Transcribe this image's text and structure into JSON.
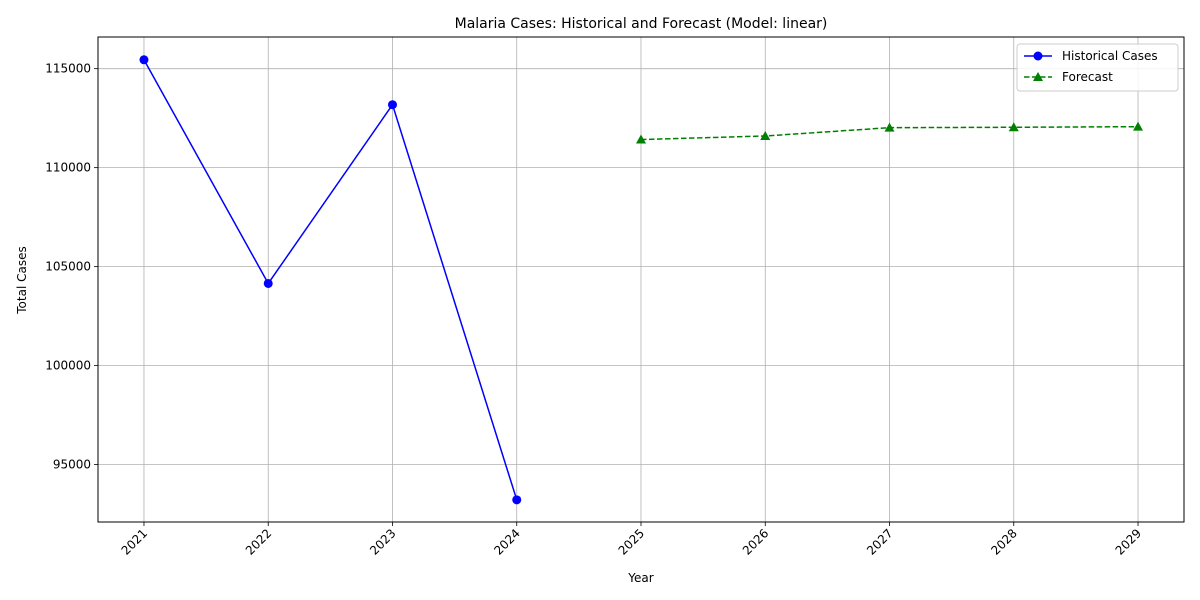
{
  "chart_data": {
    "type": "line",
    "title": "Malaria Cases: Historical and Forecast (Model: linear)",
    "xlabel": "Year",
    "ylabel": "Total Cases",
    "xlim": [
      2020.63,
      2029.37
    ],
    "ylim": [
      92100,
      116600
    ],
    "x_ticks": [
      2021,
      2022,
      2023,
      2024,
      2025,
      2026,
      2027,
      2028,
      2029
    ],
    "y_ticks": [
      95000,
      100000,
      105000,
      110000,
      115000
    ],
    "grid": true,
    "legend_position": "top-right",
    "series": [
      {
        "name": "Historical Cases",
        "color": "#0000ff",
        "line_style": "solid",
        "marker": "circle",
        "x": [
          2021,
          2022,
          2023,
          2024
        ],
        "values": [
          115450,
          104150,
          113180,
          93220
        ]
      },
      {
        "name": "Forecast",
        "color": "#008000",
        "line_style": "dashed",
        "marker": "triangle",
        "x": [
          2025,
          2026,
          2027,
          2028,
          2029
        ],
        "values": [
          111420,
          111600,
          112020,
          112040,
          112070
        ]
      }
    ]
  }
}
